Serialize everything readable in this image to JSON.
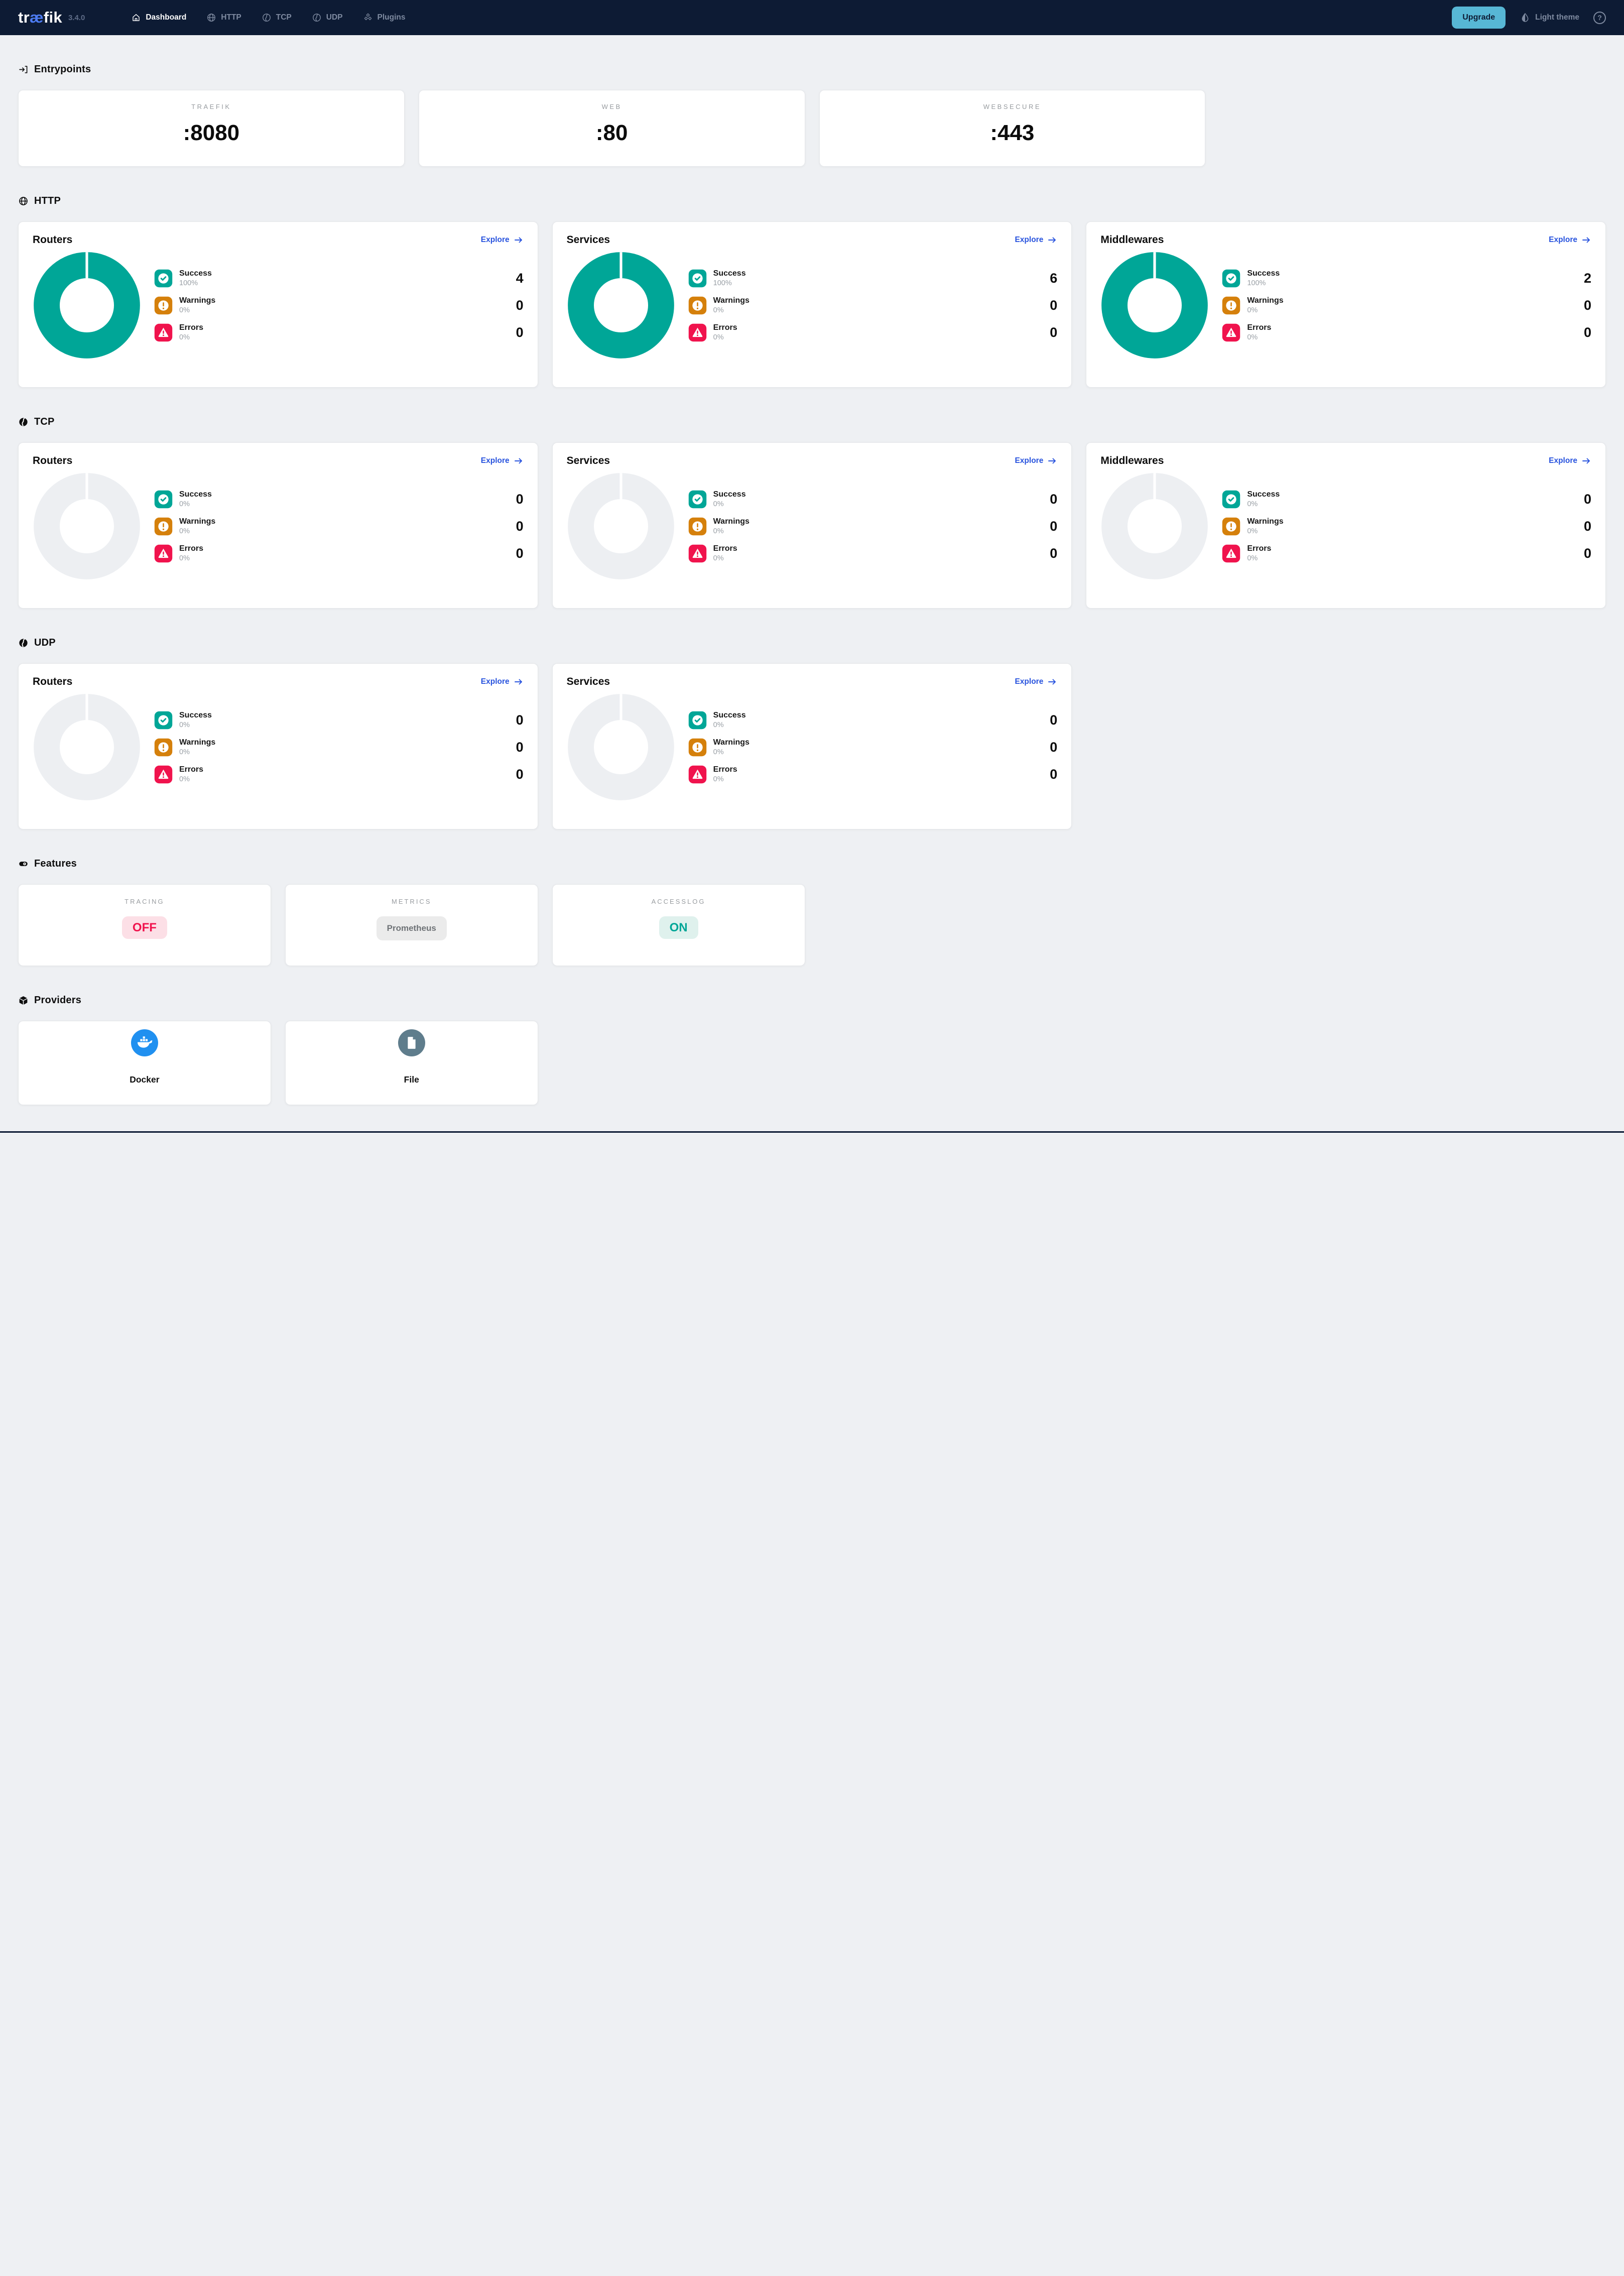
{
  "navbar": {
    "brand_pre": "tr",
    "brand_mid": "æ",
    "brand_post": "fik",
    "version": "3.4.0",
    "items": [
      {
        "label": "Dashboard",
        "icon": "home-icon",
        "active": true
      },
      {
        "label": "HTTP",
        "icon": "globe-icon",
        "active": false
      },
      {
        "label": "TCP",
        "icon": "tcp-icon",
        "active": false
      },
      {
        "label": "UDP",
        "icon": "udp-icon",
        "active": false
      },
      {
        "label": "Plugins",
        "icon": "plugins-icon",
        "active": false
      }
    ],
    "upgrade_label": "Upgrade",
    "theme_label": "Light theme",
    "help_glyph": "?"
  },
  "sections": {
    "entrypoints": {
      "title": "Entrypoints",
      "cards": [
        {
          "name": "TRAEFIK",
          "port": ":8080"
        },
        {
          "name": "WEB",
          "port": ":80"
        },
        {
          "name": "WEBSECURE",
          "port": ":443"
        }
      ]
    },
    "http": {
      "title": "HTTP",
      "cards": [
        {
          "title": "Routers",
          "explore_label": "Explore",
          "active": true,
          "legend": [
            {
              "label": "Success",
              "pct": "100%",
              "value": "4"
            },
            {
              "label": "Warnings",
              "pct": "0%",
              "value": "0"
            },
            {
              "label": "Errors",
              "pct": "0%",
              "value": "0"
            }
          ]
        },
        {
          "title": "Services",
          "explore_label": "Explore",
          "active": true,
          "legend": [
            {
              "label": "Success",
              "pct": "100%",
              "value": "6"
            },
            {
              "label": "Warnings",
              "pct": "0%",
              "value": "0"
            },
            {
              "label": "Errors",
              "pct": "0%",
              "value": "0"
            }
          ]
        },
        {
          "title": "Middlewares",
          "explore_label": "Explore",
          "active": true,
          "legend": [
            {
              "label": "Success",
              "pct": "100%",
              "value": "2"
            },
            {
              "label": "Warnings",
              "pct": "0%",
              "value": "0"
            },
            {
              "label": "Errors",
              "pct": "0%",
              "value": "0"
            }
          ]
        }
      ]
    },
    "tcp": {
      "title": "TCP",
      "cards": [
        {
          "title": "Routers",
          "explore_label": "Explore",
          "active": false,
          "legend": [
            {
              "label": "Success",
              "pct": "0%",
              "value": "0"
            },
            {
              "label": "Warnings",
              "pct": "0%",
              "value": "0"
            },
            {
              "label": "Errors",
              "pct": "0%",
              "value": "0"
            }
          ]
        },
        {
          "title": "Services",
          "explore_label": "Explore",
          "active": false,
          "legend": [
            {
              "label": "Success",
              "pct": "0%",
              "value": "0"
            },
            {
              "label": "Warnings",
              "pct": "0%",
              "value": "0"
            },
            {
              "label": "Errors",
              "pct": "0%",
              "value": "0"
            }
          ]
        },
        {
          "title": "Middlewares",
          "explore_label": "Explore",
          "active": false,
          "legend": [
            {
              "label": "Success",
              "pct": "0%",
              "value": "0"
            },
            {
              "label": "Warnings",
              "pct": "0%",
              "value": "0"
            },
            {
              "label": "Errors",
              "pct": "0%",
              "value": "0"
            }
          ]
        }
      ]
    },
    "udp": {
      "title": "UDP",
      "cards": [
        {
          "title": "Routers",
          "explore_label": "Explore",
          "active": false,
          "legend": [
            {
              "label": "Success",
              "pct": "0%",
              "value": "0"
            },
            {
              "label": "Warnings",
              "pct": "0%",
              "value": "0"
            },
            {
              "label": "Errors",
              "pct": "0%",
              "value": "0"
            }
          ]
        },
        {
          "title": "Services",
          "explore_label": "Explore",
          "active": false,
          "legend": [
            {
              "label": "Success",
              "pct": "0%",
              "value": "0"
            },
            {
              "label": "Warnings",
              "pct": "0%",
              "value": "0"
            },
            {
              "label": "Errors",
              "pct": "0%",
              "value": "0"
            }
          ]
        }
      ]
    },
    "features": {
      "title": "Features",
      "cards": [
        {
          "label": "TRACING",
          "value": "OFF",
          "state": "off"
        },
        {
          "label": "METRICS",
          "value": "Prometheus",
          "state": "neutral"
        },
        {
          "label": "ACCESSLOG",
          "value": "ON",
          "state": "on"
        }
      ]
    },
    "providers": {
      "title": "Providers",
      "cards": [
        {
          "name": "Docker",
          "kind": "docker",
          "icon": "docker-icon"
        },
        {
          "name": "File",
          "kind": "file",
          "icon": "file-icon"
        }
      ]
    }
  },
  "colors": {
    "accent_teal": "#00a697",
    "warning_orange": "#d5800b",
    "error_red": "#f0134d",
    "link_blue": "#2853de",
    "navbar_bg": "#0d1b34",
    "upgrade_cyan": "#57b7d5",
    "docker_blue": "#2090f0",
    "file_slate": "#5f7d8c",
    "empty_donut_gray": "#edeff2"
  }
}
